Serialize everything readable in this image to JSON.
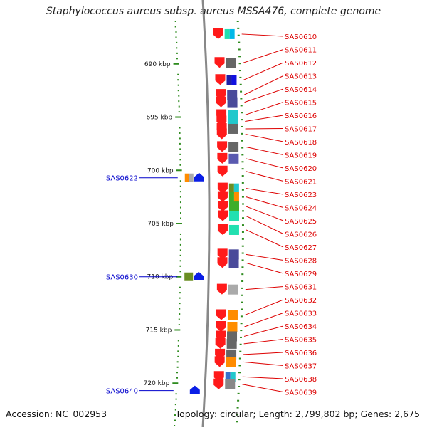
{
  "header": {
    "title": "Staphylococcus aureus subsp. aureus MSSA476, complete genome"
  },
  "footer": {
    "accession": "Accession: NC_002953",
    "topology": "Topology: circular; Length: 2,799,802 bp; Genes: 2,675"
  },
  "scale": {
    "start_kbp": 686,
    "end_kbp": 724,
    "ticks": [
      {
        "label": "690 kbp",
        "kbp": 690
      },
      {
        "label": "695 kbp",
        "kbp": 695
      },
      {
        "label": "700 kbp",
        "kbp": 700
      },
      {
        "label": "705 kbp",
        "kbp": 705
      },
      {
        "label": "710 kbp",
        "kbp": 710
      },
      {
        "label": "715 kbp",
        "kbp": 715
      },
      {
        "label": "720 kbp",
        "kbp": 720
      }
    ]
  },
  "colors": {
    "forward_gene": "#ff1a1a",
    "reverse_gene": "#0a1ee6",
    "forward_label": "#dd0000",
    "reverse_label": "#0000cc",
    "scale": "#2e8b1e",
    "backbone": "#888888"
  },
  "forward_genes": [
    {
      "name": "SAS0610",
      "kbp": 687.2,
      "domains": [
        "#22e0b0",
        "#00b8e8"
      ]
    },
    {
      "name": "SAS0611",
      "kbp": 689.9,
      "domains": [
        "#666666"
      ]
    },
    {
      "name": "SAS0612",
      "kbp": 691.5,
      "domains": [
        "#1e1ea8",
        "#1010e0"
      ]
    },
    {
      "name": "SAS0613",
      "kbp": 692.9,
      "domains": [
        "#4a4a9a"
      ]
    },
    {
      "name": "SAS0614",
      "kbp": 693.6,
      "domains": [
        "#4a4a9a"
      ]
    },
    {
      "name": "SAS0615",
      "kbp": 694.8,
      "domains": [
        "#22c8cc"
      ]
    },
    {
      "name": "SAS0616",
      "kbp": 695.4,
      "domains": [
        "#22c8cc"
      ]
    },
    {
      "name": "SAS0617",
      "kbp": 696.1,
      "domains": [
        "#666666"
      ]
    },
    {
      "name": "SAS0618",
      "kbp": 696.6,
      "domains": []
    },
    {
      "name": "SAS0619",
      "kbp": 697.8,
      "domains": [
        "#666666"
      ]
    },
    {
      "name": "SAS0620",
      "kbp": 698.9,
      "domains": [
        "#5a5ab0"
      ]
    },
    {
      "name": "SAS0621",
      "kbp": 700.1,
      "domains": []
    },
    {
      "name": "SAS0623",
      "kbp": 701.7,
      "domains": [
        "#6b8e23",
        "#22c8cc"
      ]
    },
    {
      "name": "SAS0624",
      "kbp": 702.5,
      "domains": [
        "#3fae2a",
        "#ff8c00"
      ]
    },
    {
      "name": "SAS0625",
      "kbp": 703.4,
      "domains": [
        "#3fae2a"
      ]
    },
    {
      "name": "SAS0626",
      "kbp": 704.3,
      "domains": [
        "#22e0b0"
      ]
    },
    {
      "name": "SAS0627",
      "kbp": 705.6,
      "domains": [
        "#22e0b0"
      ]
    },
    {
      "name": "SAS0628",
      "kbp": 707.9,
      "domains": [
        "#4a4a9a"
      ]
    },
    {
      "name": "SAS0629",
      "kbp": 708.7,
      "domains": [
        "#4a4a9a"
      ]
    },
    {
      "name": "SAS0631",
      "kbp": 711.2,
      "domains": [
        "#aaaaaa"
      ]
    },
    {
      "name": "SAS0632",
      "kbp": 713.6,
      "domains": [
        "#ff8c00"
      ]
    },
    {
      "name": "SAS0633",
      "kbp": 714.7,
      "domains": [
        "#ff8c00"
      ]
    },
    {
      "name": "SAS0634",
      "kbp": 715.6,
      "domains": [
        "#666666"
      ]
    },
    {
      "name": "SAS0635",
      "kbp": 716.3,
      "domains": [
        "#666666"
      ]
    },
    {
      "name": "SAS0636",
      "kbp": 717.3,
      "domains": [
        "#666666"
      ]
    },
    {
      "name": "SAS0637",
      "kbp": 718.0,
      "domains": [
        "#ff8c00"
      ]
    },
    {
      "name": "SAS0638",
      "kbp": 719.4,
      "domains": [
        "#3a70c8",
        "#22c8cc"
      ]
    },
    {
      "name": "SAS0639",
      "kbp": 720.1,
      "domains": [
        "#888888"
      ]
    }
  ],
  "reverse_genes": [
    {
      "name": "SAS0622",
      "kbp": 700.7,
      "domains": [
        "#ff8c00",
        "#aaaaaa"
      ]
    },
    {
      "name": "SAS0630",
      "kbp": 710.0,
      "domains": [
        "#6b8e23"
      ]
    },
    {
      "name": "SAS0640",
      "kbp": 720.7,
      "domains": []
    }
  ]
}
